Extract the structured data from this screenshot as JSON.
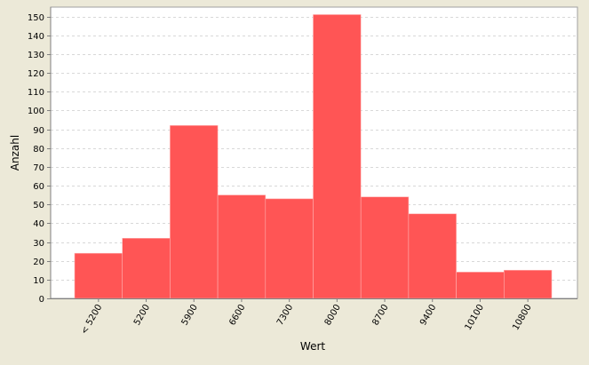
{
  "chart_data": {
    "type": "bar",
    "xlabel": "Wert",
    "ylabel": "Anzahl",
    "categories": [
      "< 5200",
      "5200",
      "5900",
      "6600",
      "7300",
      "8000",
      "8700",
      "9400",
      "10100",
      "10800"
    ],
    "values": [
      24,
      32,
      92,
      55,
      53,
      151,
      54,
      45,
      14,
      15
    ],
    "ylim": [
      0,
      155
    ],
    "yticks": [
      0,
      10,
      20,
      30,
      40,
      50,
      60,
      70,
      80,
      90,
      100,
      110,
      120,
      130,
      140,
      150
    ],
    "grid": true,
    "legend": "none"
  },
  "colors": {
    "bar": "#ff5555",
    "plot_background": "#ffffff",
    "gridline": "#d8d8d8",
    "page_background": "#ece9d8"
  }
}
